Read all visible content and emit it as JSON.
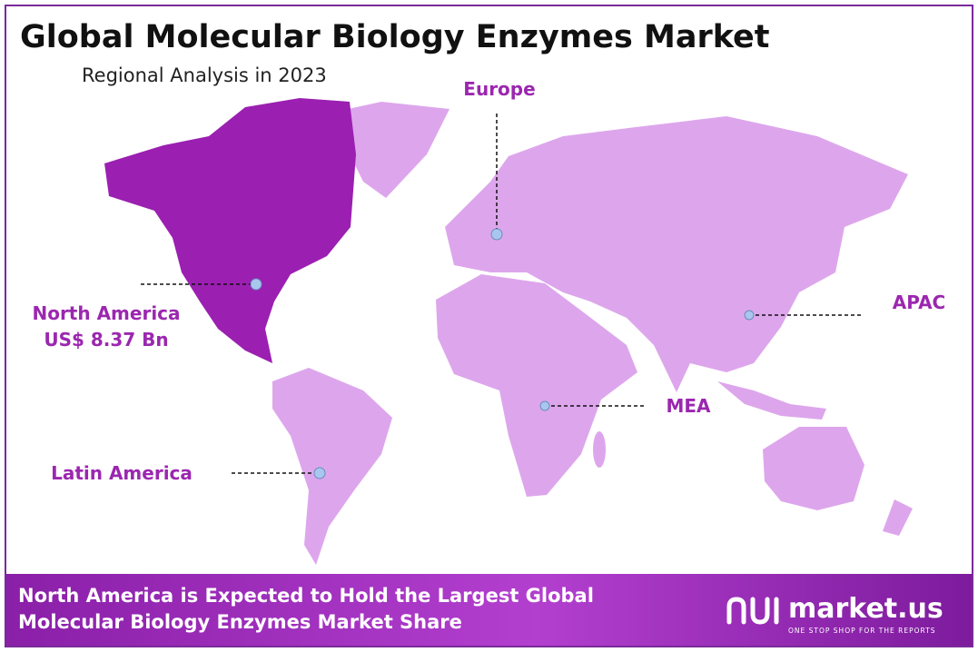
{
  "header": {
    "title": "Global Molecular Biology Enzymes Market",
    "subtitle": "Regional Analysis in 2023"
  },
  "regions": [
    {
      "label": "North America",
      "value": "US$ 8.37 Bn"
    },
    {
      "label": "Europe"
    },
    {
      "label": "APAC"
    },
    {
      "label": "MEA"
    },
    {
      "label": "Latin America"
    }
  ],
  "footer": {
    "text": "North America is Expected to Hold the Largest Global Molecular Biology Enzymes Market Share",
    "brand": "market.us",
    "tagline": "ONE STOP SHOP FOR THE REPORTS"
  }
}
